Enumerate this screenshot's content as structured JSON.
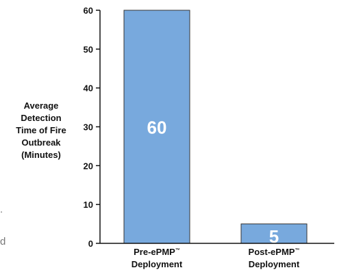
{
  "colors": {
    "bar_fill": "#78a9dd",
    "bar_stroke": "#333333",
    "axis": "#111111",
    "value_label": "#ffffff",
    "text": "#111111"
  },
  "stray_marks": [
    ".",
    "d"
  ],
  "chart_data": {
    "type": "bar",
    "title": "",
    "ylabel_lines": [
      "Average",
      "Detection",
      "Time of Fire",
      "Outbreak",
      "(Minutes)"
    ],
    "ylabel": "Average Detection Time of Fire Outbreak (Minutes)",
    "xlabel": "",
    "categories": [
      [
        "Pre-ePMP",
        "™",
        "Deployment"
      ],
      [
        "Post-ePMP",
        "™",
        "Deployment"
      ]
    ],
    "values": [
      60,
      5
    ],
    "data_labels": [
      "60",
      "5"
    ],
    "ylim": [
      0,
      60
    ],
    "yticks": [
      0,
      10,
      20,
      30,
      40,
      50,
      60
    ],
    "grid": false,
    "legend": "none"
  }
}
